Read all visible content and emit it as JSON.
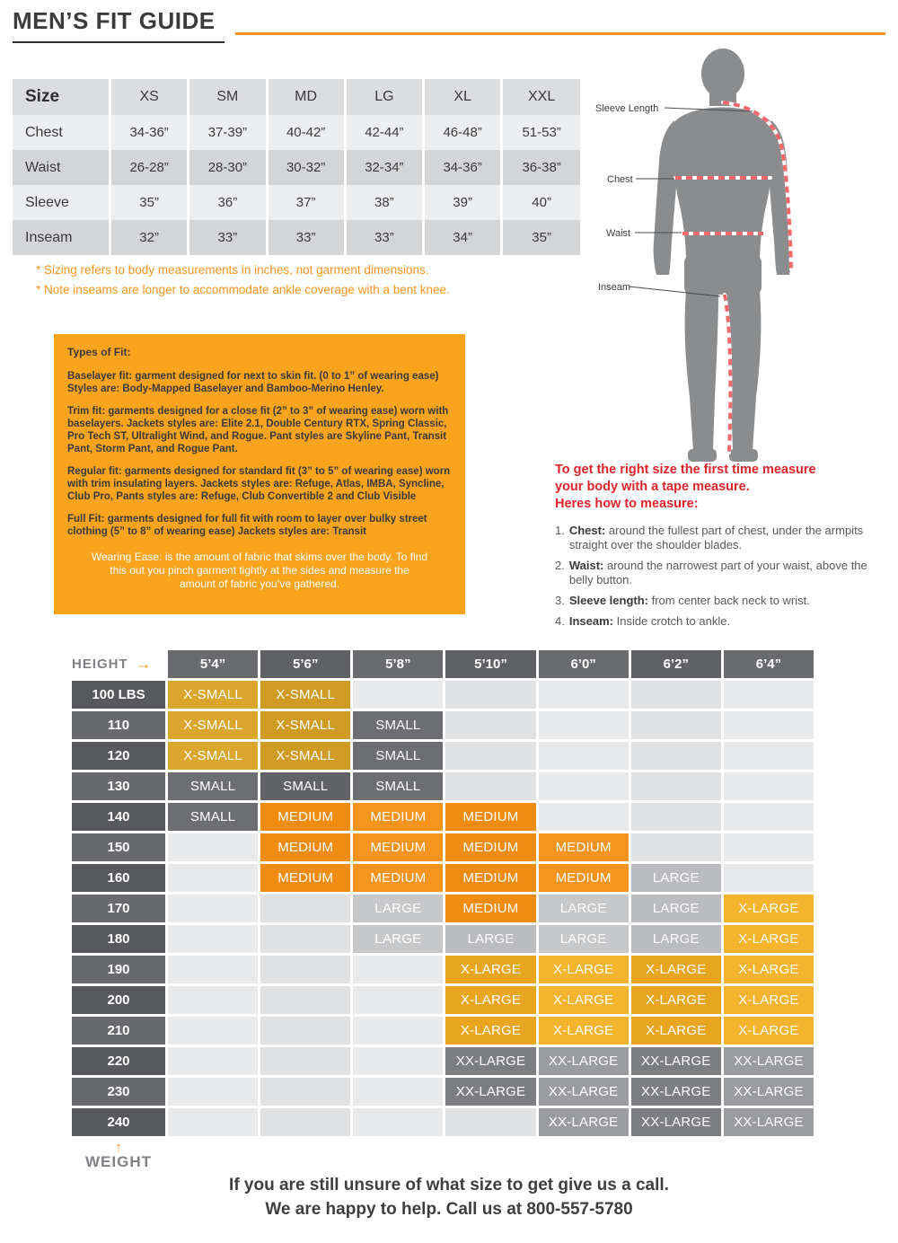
{
  "page": {
    "title": "MEN’S FIT GUIDE",
    "footer_line1": "If you are still unsure of what size to get give us a call.",
    "footer_line2": "We are happy to help.  Call us at 800-557-5780"
  },
  "theme": {
    "accent_orange": "#F7941E",
    "heading_red": "#E0232B",
    "fit_box_bg": "#F9A41C",
    "silhouette_gray": "#8A8C8E",
    "measure_line_red": "#F2686B"
  },
  "icons": {
    "right_arrow": "→",
    "up_arrow": "↑"
  },
  "size_table": {
    "header": [
      "Size",
      "XS",
      "SM",
      "MD",
      "LG",
      "XL",
      "XXL"
    ],
    "rows": [
      {
        "label": "Chest",
        "values": [
          "34-36”",
          "37-39”",
          "40-42”",
          "42-44”",
          "46-48”",
          "51-53”"
        ]
      },
      {
        "label": "Waist",
        "values": [
          "26-28”",
          "28-30”",
          "30-32”",
          "32-34”",
          "34-36”",
          "36-38”"
        ]
      },
      {
        "label": "Sleeve",
        "values": [
          "35”",
          "36”",
          "37”",
          "38”",
          "39”",
          "40”"
        ]
      },
      {
        "label": "Inseam",
        "values": [
          "32”",
          "33”",
          "33”",
          "33”",
          "34”",
          "35”"
        ]
      }
    ],
    "footnotes": [
      "* Sizing refers to body measurements in inches, not garment dimensions.",
      "* Note inseams are longer to accommodate ankle coverage with a bent knee."
    ]
  },
  "fit_box": {
    "title": "Types of Fit:",
    "paragraphs": [
      "Baselayer fit: garment designed for next to skin fit. (0 to 1” of wearing ease) Styles are: Body-Mapped Baselayer and Bamboo-Merino Henley.",
      "Trim fit: garments designed for a close fit (2” to 3” of wearing ease) worn with baselayers. Jackets styles are:  Elite 2.1, Double Century RTX, Spring Classic, Pro Tech ST, Ultralight Wind, and Rogue.  Pant styles are Skyline Pant, Transit Pant, Storm Pant, and Rogue Pant.",
      "Regular fit: garments designed for standard fit (3” to 5” of wearing ease) worn with trim insulating layers. Jackets styles are: Refuge, Atlas, IMBA, Syncline, Club Pro, Pants styles are: Refuge, Club Convertible 2 and Club Visible",
      "Full Fit: garments designed for full fit with room to layer over bulky street clothing (5” to 8” of wearing ease)  Jackets styles are: Transit"
    ],
    "wearing_ease": "Wearing Ease:  is the amount of fabric that skims over the body. To find this out you pinch garment tightly at the sides and measure the amount of fabric you’ve gathered."
  },
  "figure": {
    "labels": [
      "Sleeve Length",
      "Chest",
      "Waist",
      "Inseam"
    ]
  },
  "measure": {
    "intro": [
      "To get the right size the first time measure",
      "your body with a tape measure.",
      "Heres how to measure:"
    ],
    "steps": [
      {
        "num": "1.",
        "term": "Chest:",
        "text": "around the fullest part of chest, under the armpits straight over the shoulder blades."
      },
      {
        "num": "2.",
        "term": "Waist:",
        "text": "around the narrowest part of your waist, above the belly button."
      },
      {
        "num": "3.",
        "term": "Sleeve length:",
        "text": "from center back neck to wrist."
      },
      {
        "num": "4.",
        "term": "Inseam:",
        "text": "Inside crotch to ankle."
      }
    ]
  },
  "matrix": {
    "height_label": "HEIGHT",
    "weight_label": "WEIGHT",
    "heights": [
      "5’4”",
      "5’6”",
      "5’8”",
      "5’10”",
      "6’0”",
      "6’2”",
      "6’4”"
    ],
    "weights": [
      "100 LBS",
      "110",
      "120",
      "130",
      "140",
      "150",
      "160",
      "170",
      "180",
      "190",
      "200",
      "210",
      "220",
      "230",
      "240"
    ],
    "sizes": {
      "XS": "X-SMALL",
      "S": "SMALL",
      "M": "MEDIUM",
      "L": "LARGE",
      "XL": "X-LARGE",
      "XXL": "XX-LARGE"
    },
    "colors": {
      "XS": {
        "base": "#DBA62C",
        "alt": "#CF9B22"
      },
      "S": {
        "base": "#6D6E71",
        "alt": "#626366"
      },
      "M": {
        "base": "#F7941E",
        "alt": "#F08C12"
      },
      "L": {
        "base": "#C7C8CA",
        "alt": "#BBBCBF"
      },
      "XL": {
        "base": "#F4B42E",
        "alt": "#E8A51F"
      },
      "XXL": {
        "base": "#9A9CA0",
        "alt": "#7C7E82"
      },
      "EMPTY": {
        "base": "#E8E9EA",
        "alt": "#E0E1E3"
      }
    },
    "cells": [
      [
        "XS",
        "XS",
        "",
        "",
        "",
        "",
        ""
      ],
      [
        "XS",
        "XS",
        "S",
        "",
        "",
        "",
        ""
      ],
      [
        "XS",
        "XS",
        "S",
        "",
        "",
        "",
        ""
      ],
      [
        "S",
        "S",
        "S",
        "",
        "",
        "",
        ""
      ],
      [
        "S",
        "M",
        "M",
        "M",
        "",
        "",
        ""
      ],
      [
        "",
        "M",
        "M",
        "M",
        "M",
        "",
        ""
      ],
      [
        "",
        "M",
        "M",
        "M",
        "M",
        "L",
        ""
      ],
      [
        "",
        "",
        "L",
        "M",
        "L",
        "L",
        "XL"
      ],
      [
        "",
        "",
        "L",
        "L",
        "L",
        "L",
        "XL"
      ],
      [
        "",
        "",
        "",
        "XL",
        "XL",
        "XL",
        "XL"
      ],
      [
        "",
        "",
        "",
        "XL",
        "XL",
        "XL",
        "XL"
      ],
      [
        "",
        "",
        "",
        "XL",
        "XL",
        "XL",
        "XL"
      ],
      [
        "",
        "",
        "",
        "XXL",
        "XXL",
        "XXL",
        "XXL"
      ],
      [
        "",
        "",
        "",
        "XXL",
        "XXL",
        "XXL",
        "XXL"
      ],
      [
        "",
        "",
        "",
        "",
        "XXL",
        "XXL",
        "XXL"
      ]
    ]
  }
}
